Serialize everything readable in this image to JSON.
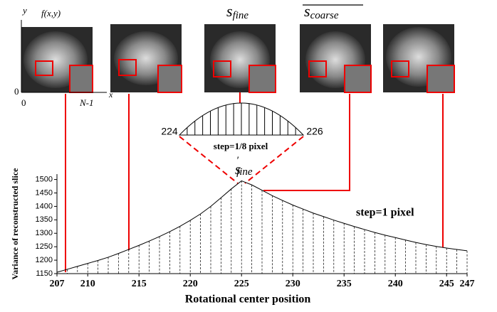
{
  "chart_data": {
    "type": "line",
    "x": [
      207,
      208,
      209,
      210,
      211,
      212,
      213,
      214,
      215,
      216,
      217,
      218,
      219,
      220,
      221,
      222,
      223,
      224,
      225,
      226,
      227,
      228,
      229,
      230,
      231,
      232,
      233,
      234,
      235,
      236,
      237,
      238,
      239,
      240,
      241,
      242,
      243,
      244,
      245,
      246,
      247
    ],
    "values": [
      1155,
      1166,
      1177,
      1188,
      1199,
      1211,
      1225,
      1240,
      1255,
      1271,
      1288,
      1306,
      1326,
      1348,
      1372,
      1400,
      1432,
      1465,
      1495,
      1480,
      1460,
      1440,
      1422,
      1405,
      1390,
      1375,
      1362,
      1349,
      1337,
      1325,
      1314,
      1303,
      1293,
      1284,
      1275,
      1266,
      1258,
      1251,
      1245,
      1240,
      1235
    ],
    "color": "#000000",
    "xlim": [
      207,
      247
    ],
    "ylim": [
      1150,
      1520
    ],
    "xticks": [
      207,
      210,
      215,
      220,
      225,
      230,
      235,
      240,
      245,
      247
    ],
    "yticks": [
      1150,
      1200,
      1250,
      1300,
      1350,
      1400,
      1450,
      1500
    ],
    "xlabel": "Rotational center position",
    "ylabel": "Variance of reconstructed slice",
    "annotations": {
      "step_coarse": "step=1 pixel",
      "step_fine": "step=1/8 pixel",
      "inset_left": "224",
      "inset_right": "226",
      "peak": {
        "symbol": "s",
        "prime": "′",
        "subscript": "fine"
      }
    }
  },
  "images": {
    "axis_function": "f(x,y)",
    "axis_y": "y",
    "axis_x": "x",
    "origin_y": "0",
    "origin_x": "0",
    "x_end": "N-1",
    "labels": [
      {
        "symbol": "s",
        "subscript": "fine"
      },
      {
        "symbol": "s",
        "subscript": "coarse"
      }
    ]
  }
}
